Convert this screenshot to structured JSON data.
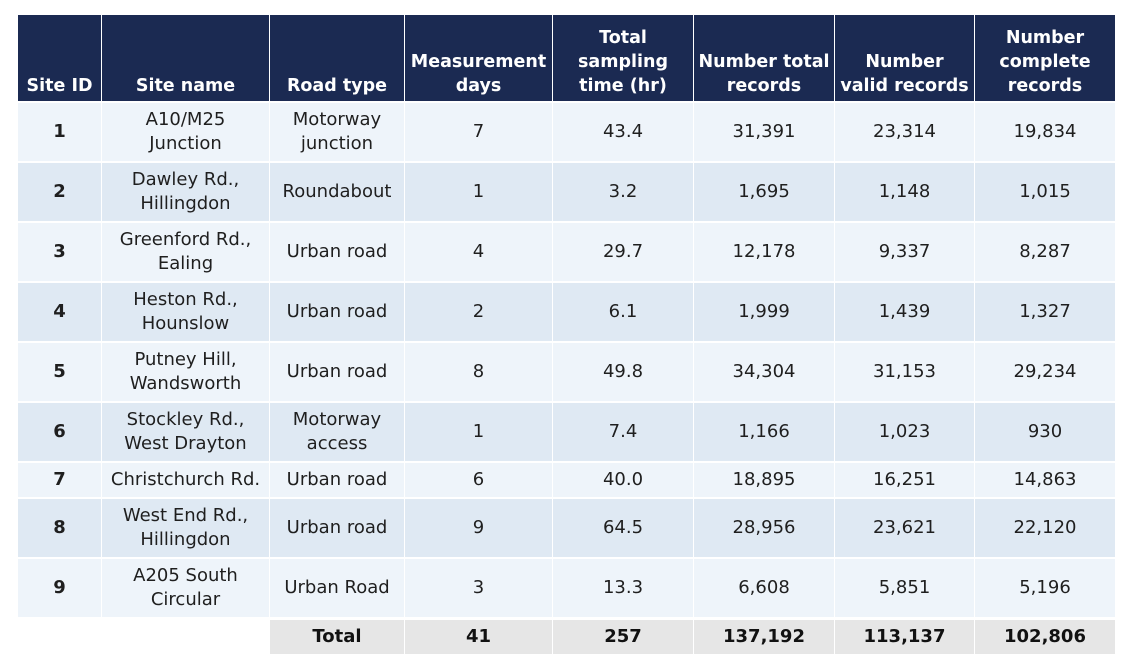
{
  "table": {
    "headers": [
      "Site ID",
      "Site name",
      "Road type",
      "Measurement days",
      "Total sampling time (hr)",
      "Number total records",
      "Number valid records",
      "Number complete records"
    ],
    "rows": [
      [
        "1",
        "A10/M25 Junction",
        "Motorway junction",
        "7",
        "43.4",
        "31,391",
        "23,314",
        "19,834"
      ],
      [
        "2",
        "Dawley Rd., Hillingdon",
        "Roundabout",
        "1",
        "3.2",
        "1,695",
        "1,148",
        "1,015"
      ],
      [
        "3",
        "Greenford Rd., Ealing",
        "Urban road",
        "4",
        "29.7",
        "12,178",
        "9,337",
        "8,287"
      ],
      [
        "4",
        "Heston Rd., Hounslow",
        "Urban road",
        "2",
        "6.1",
        "1,999",
        "1,439",
        "1,327"
      ],
      [
        "5",
        "Putney Hill, Wandsworth",
        "Urban road",
        "8",
        "49.8",
        "34,304",
        "31,153",
        "29,234"
      ],
      [
        "6",
        "Stockley Rd., West Drayton",
        "Motorway access",
        "1",
        "7.4",
        "1,166",
        "1,023",
        "930"
      ],
      [
        "7",
        "Christchurch Rd.",
        "Urban road",
        "6",
        "40.0",
        "18,895",
        "16,251",
        "14,863"
      ],
      [
        "8",
        "West End Rd., Hillingdon",
        "Urban road",
        "9",
        "64.5",
        "28,956",
        "23,621",
        "22,120"
      ],
      [
        "9",
        "A205 South Circular",
        "Urban Road",
        "3",
        "13.3",
        "6,608",
        "5,851",
        "5,196"
      ]
    ],
    "total": {
      "label": "Total",
      "values": [
        "41",
        "257",
        "137,192",
        "113,137",
        "102,806"
      ]
    }
  },
  "colors": {
    "header_bg": "#1b2a52",
    "row_light": "#eef4fa",
    "row_dark": "#dfe9f3",
    "total_bg": "#e6e6e6"
  }
}
